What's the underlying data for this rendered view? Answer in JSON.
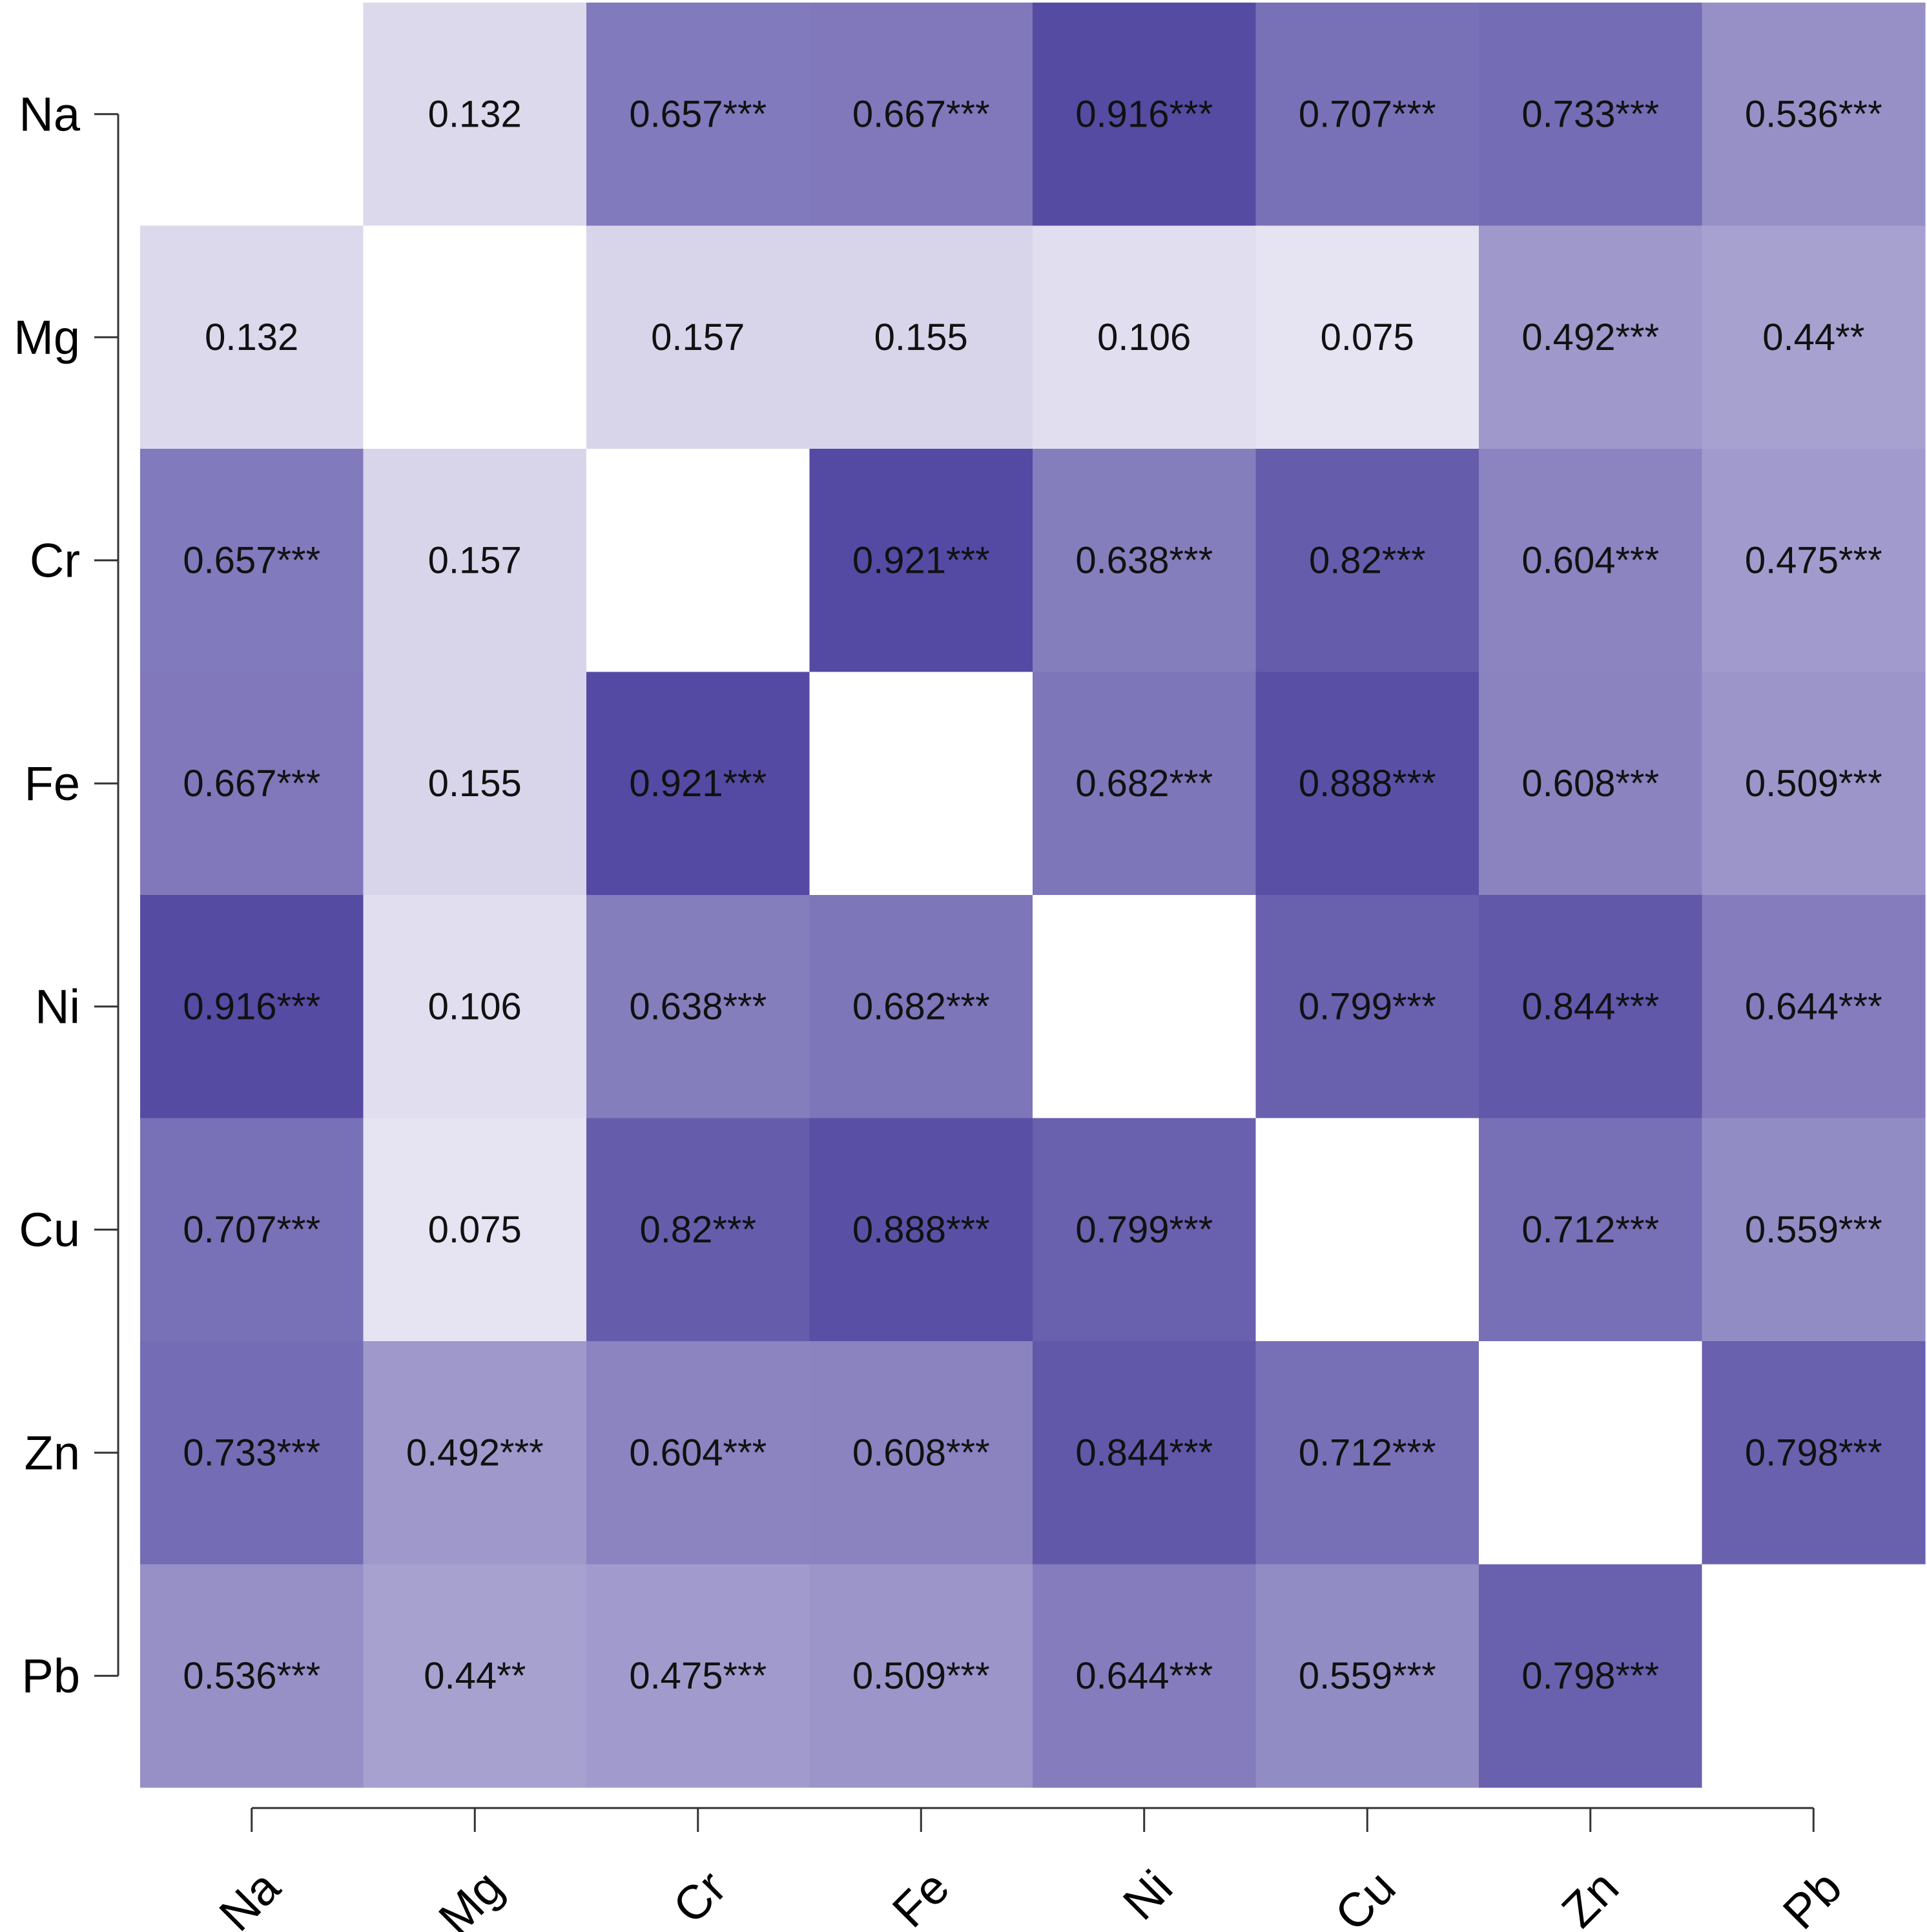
{
  "chart_data": {
    "type": "heatmap",
    "title": "",
    "xlabel": "",
    "ylabel": "",
    "variables": [
      "Na",
      "Mg",
      "Cr",
      "Fe",
      "Ni",
      "Cu",
      "Zn",
      "Pb"
    ],
    "x_tick_labels": [
      "Na",
      "Mg",
      "Cr",
      "Fe",
      "Ni",
      "Cu",
      "Zn",
      "Pb"
    ],
    "y_tick_labels": [
      "Na",
      "Mg",
      "Cr",
      "Fe",
      "Ni",
      "Cu",
      "Zn",
      "Pb"
    ],
    "values": [
      [
        null,
        0.132,
        0.657,
        0.667,
        0.916,
        0.707,
        0.733,
        0.536
      ],
      [
        0.132,
        null,
        0.157,
        0.155,
        0.106,
        0.075,
        0.492,
        0.44
      ],
      [
        0.657,
        0.157,
        null,
        0.921,
        0.638,
        0.82,
        0.604,
        0.475
      ],
      [
        0.667,
        0.155,
        0.921,
        null,
        0.682,
        0.888,
        0.608,
        0.509
      ],
      [
        0.916,
        0.106,
        0.638,
        0.682,
        null,
        0.799,
        0.844,
        0.644
      ],
      [
        0.707,
        0.075,
        0.82,
        0.888,
        0.799,
        null,
        0.712,
        0.559
      ],
      [
        0.733,
        0.492,
        0.604,
        0.608,
        0.844,
        0.712,
        null,
        0.798
      ],
      [
        0.536,
        0.44,
        0.475,
        0.509,
        0.644,
        0.559,
        0.798,
        null
      ]
    ],
    "cell_labels": [
      [
        "",
        "0.132",
        "0.657***",
        "0.667***",
        "0.916***",
        "0.707***",
        "0.733***",
        "0.536***"
      ],
      [
        "0.132",
        "",
        "0.157",
        "0.155",
        "0.106",
        "0.075",
        "0.492***",
        "0.44**"
      ],
      [
        "0.657***",
        "0.157",
        "",
        "0.921***",
        "0.638***",
        "0.82***",
        "0.604***",
        "0.475***"
      ],
      [
        "0.667***",
        "0.155",
        "0.921***",
        "",
        "0.682***",
        "0.888***",
        "0.608***",
        "0.509***"
      ],
      [
        "0.916***",
        "0.106",
        "0.638***",
        "0.682***",
        "",
        "0.799***",
        "0.844***",
        "0.644***"
      ],
      [
        "0.707***",
        "0.075",
        "0.82***",
        "0.888***",
        "0.799***",
        "",
        "0.712***",
        "0.559***"
      ],
      [
        "0.733***",
        "0.492***",
        "0.604***",
        "0.608***",
        "0.844***",
        "0.712***",
        "",
        "0.798***"
      ],
      [
        "0.536***",
        "0.44**",
        "0.475***",
        "0.509***",
        "0.644***",
        "0.559***",
        "0.798***",
        ""
      ]
    ],
    "color_scale": {
      "low": "#f3f1fa",
      "high": "#463c9b",
      "diagonal": "#ffffff",
      "domain": [
        0,
        1
      ]
    },
    "grid": false,
    "legend": "none"
  }
}
